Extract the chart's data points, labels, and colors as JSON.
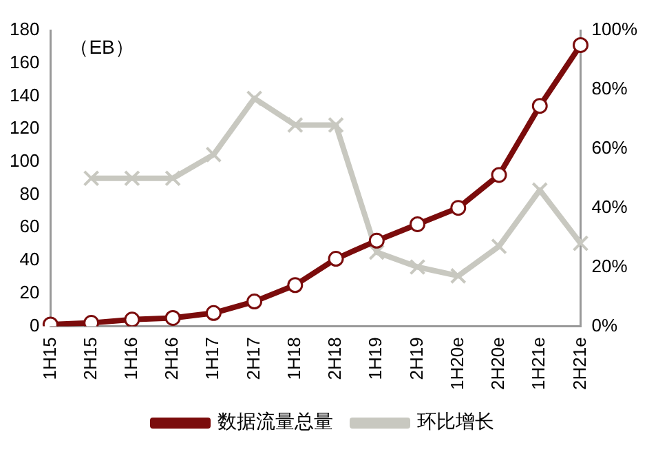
{
  "chart_data": {
    "type": "line",
    "annotations": [
      "（EB）"
    ],
    "categories": [
      "1H15",
      "2H15",
      "1H16",
      "2H16",
      "1H17",
      "2H17",
      "1H18",
      "2H18",
      "1H19",
      "2H19",
      "1H20e",
      "2H20e",
      "1H21e",
      "2H21e"
    ],
    "series": [
      {
        "name": "数据流量总量",
        "color": "#7b0c0c",
        "marker": "circle",
        "values": [
          1,
          2,
          4,
          5,
          8,
          15,
          25,
          41,
          52,
          62,
          72,
          92,
          134,
          171
        ]
      },
      {
        "name": "环比增长",
        "color": "#c8c8c0",
        "marker": "cross",
        "axis": "y2",
        "values": [
          null,
          50,
          50,
          50,
          58,
          77,
          68,
          68,
          25,
          20,
          17,
          27,
          46,
          28
        ]
      }
    ],
    "ylim": [
      0,
      180
    ],
    "yticks": [
      0,
      20,
      40,
      60,
      80,
      100,
      120,
      140,
      160,
      180
    ],
    "y2lim": [
      0,
      100
    ],
    "y2ticks": [
      {
        "value": 0,
        "label": "0%"
      },
      {
        "value": 20,
        "label": "20%"
      },
      {
        "value": 40,
        "label": "40%"
      },
      {
        "value": 60,
        "label": "60%"
      },
      {
        "value": 80,
        "label": "80%"
      },
      {
        "value": 100,
        "label": "100%"
      }
    ],
    "grid": false,
    "legend": "bottom"
  }
}
